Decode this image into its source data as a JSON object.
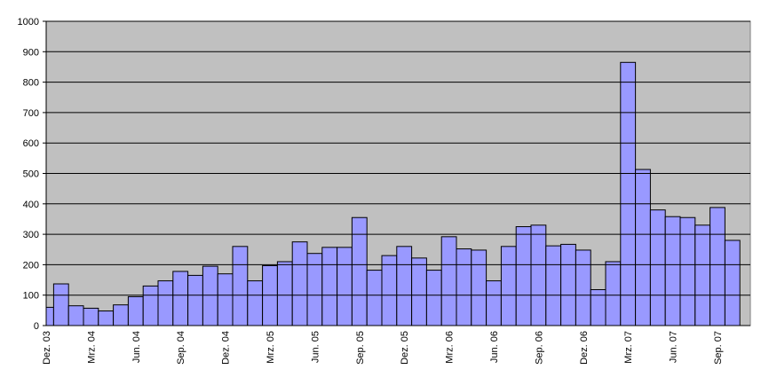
{
  "chart_data": {
    "type": "bar",
    "categories": [
      "Dez. 03",
      null,
      null,
      "Mrz. 04",
      null,
      null,
      "Jun. 04",
      null,
      null,
      "Sep. 04",
      null,
      null,
      "Dez. 04",
      null,
      null,
      "Mrz. 05",
      null,
      null,
      "Jun. 05",
      null,
      null,
      "Sep. 05",
      null,
      null,
      "Dez. 05",
      null,
      null,
      "Mrz. 06",
      null,
      null,
      "Jun. 06",
      null,
      null,
      "Sep. 06",
      null,
      null,
      "Dez. 06",
      null,
      null,
      "Mrz. 07",
      null,
      null,
      "Jun. 07",
      null,
      null,
      "Sep. 07",
      null
    ],
    "values": [
      60,
      137,
      65,
      57,
      48,
      68,
      95,
      130,
      147,
      178,
      165,
      195,
      170,
      260,
      147,
      197,
      210,
      275,
      237,
      257,
      257,
      355,
      182,
      230,
      260,
      222,
      182,
      292,
      252,
      248,
      147,
      260,
      325,
      330,
      262,
      267,
      248,
      118,
      210,
      865,
      513,
      380,
      358,
      355,
      330,
      388,
      280
    ],
    "color": "#9999ff",
    "ylim": [
      0,
      1000
    ],
    "yticks": [
      0,
      100,
      200,
      300,
      400,
      500,
      600,
      700,
      800,
      900,
      1000
    ],
    "grid": true
  }
}
